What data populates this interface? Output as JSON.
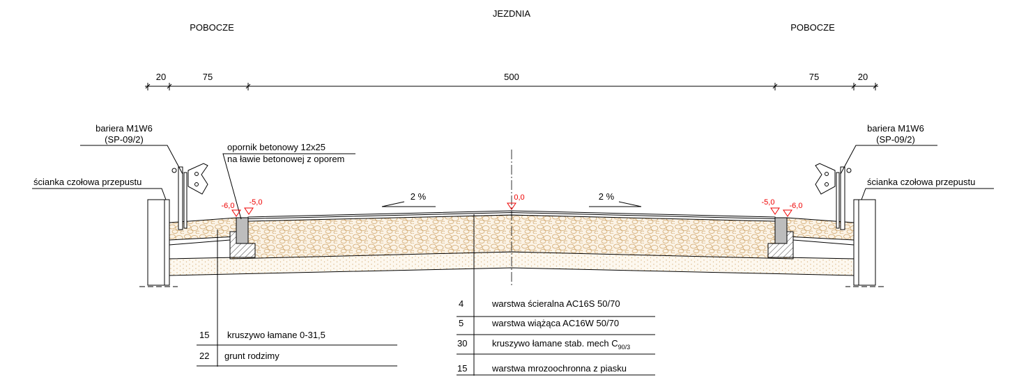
{
  "zones": {
    "left": "POBOCZE",
    "center": "JEZDNIA",
    "right": "POBOCZE"
  },
  "dimensions": [
    20,
    75,
    500,
    75,
    20
  ],
  "barrier": {
    "left": {
      "name": "bariera M1W6",
      "code": "(SP-09/2)"
    },
    "right": {
      "name": "bariera M1W6",
      "code": "(SP-09/2)"
    }
  },
  "headwall": {
    "left": "ścianka czołowa przepustu",
    "right": "ścianka czołowa przepustu"
  },
  "curb": {
    "line1": "opornik betonowy 12x25",
    "line2": "na ławie betonowej z oporem"
  },
  "slopes": [
    "2 %",
    "2 %"
  ],
  "elevations": [
    "-6,0",
    "-5,0",
    "0,0",
    "-5,0",
    "-6,0"
  ],
  "pavement_layers": [
    {
      "thickness": 4,
      "name": "warstwa ścieralna AC16S 50/70"
    },
    {
      "thickness": 5,
      "name": "warstwa wiążąca AC16W 50/70"
    },
    {
      "thickness": 30,
      "name": "kruszywo łamane stab. mech C",
      "subscript": "90/3"
    },
    {
      "thickness": 15,
      "name": "warstwa mrozoochronna z piasku"
    }
  ],
  "shoulder_layers": [
    {
      "thickness": 15,
      "name": "kruszywo łamane 0-31,5"
    },
    {
      "thickness": 22,
      "name": "grunt rodzimy"
    }
  ]
}
